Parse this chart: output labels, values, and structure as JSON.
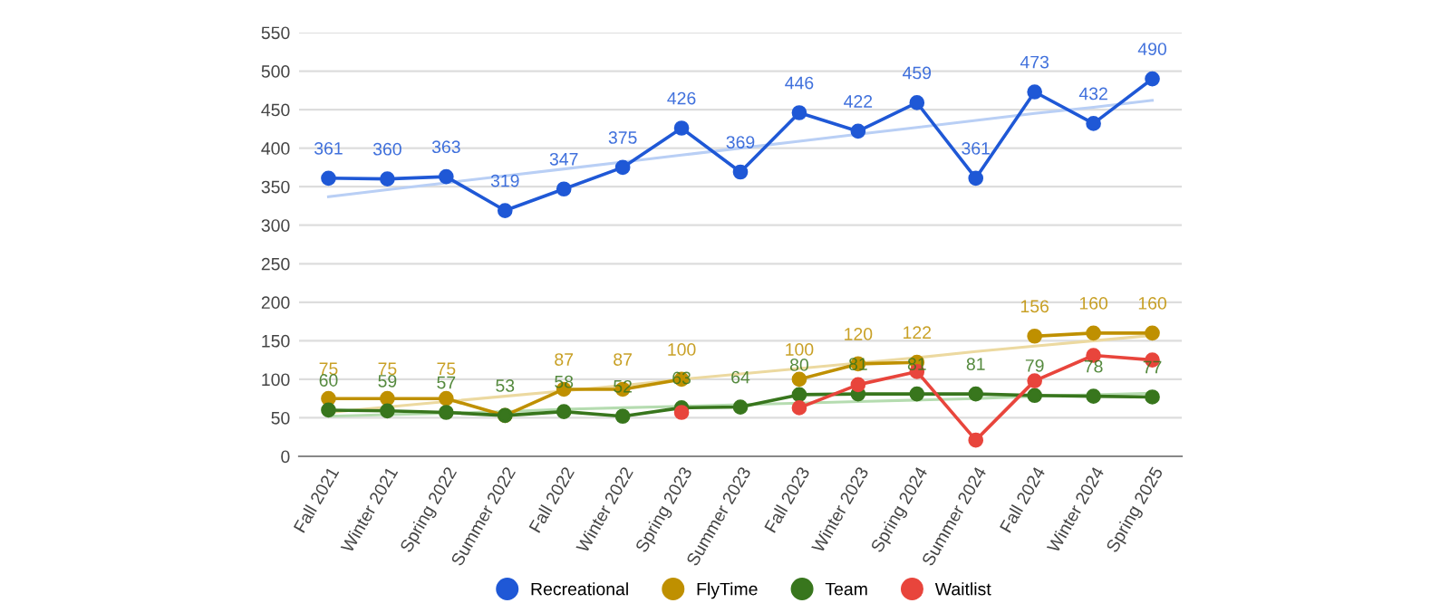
{
  "chart_data": {
    "type": "line",
    "categories": [
      "Fall 2021",
      "Winter 2021",
      "Spring 2022",
      "Summer 2022",
      "Fall 2022",
      "Winter 2022",
      "Spring 2023",
      "Summer 2023",
      "Fall 2023",
      "Winter 2023",
      "Spring 2024",
      "Summer 2024",
      "Fall 2024",
      "Winter 2024",
      "Spring 2025"
    ],
    "series": [
      {
        "name": "Recreational",
        "color": "#1f58d6",
        "values": [
          361,
          360,
          363,
          319,
          347,
          375,
          426,
          369,
          446,
          422,
          459,
          361,
          473,
          432,
          490
        ],
        "value_labels": [
          "361",
          "360",
          "363",
          "319",
          "347",
          "375",
          "426",
          "369",
          "446",
          "422",
          "459",
          "361",
          "473",
          "432",
          "490"
        ]
      },
      {
        "name": "FlyTime",
        "color": "#bf9000",
        "values": [
          75,
          75,
          75,
          53,
          87,
          87,
          100,
          null,
          100,
          120,
          122,
          null,
          156,
          160,
          160
        ],
        "value_labels": [
          "75",
          "75",
          "75",
          null,
          "87",
          "87",
          "100",
          null,
          "100",
          "120",
          "122",
          null,
          "156",
          "160",
          "160"
        ]
      },
      {
        "name": "Team",
        "color": "#38761d",
        "values": [
          60,
          59,
          57,
          53,
          58,
          52,
          63,
          64,
          80,
          81,
          81,
          81,
          79,
          78,
          77
        ],
        "value_labels": [
          "60",
          "59",
          "57",
          "53",
          "58",
          "52",
          "63",
          "64",
          "80",
          "81",
          "81",
          "81",
          "79",
          "78",
          "77"
        ]
      },
      {
        "name": "Waitlist",
        "color": "#e8453c",
        "values": [
          null,
          null,
          null,
          null,
          null,
          null,
          57,
          null,
          63,
          93,
          110,
          21,
          98,
          131,
          125
        ]
      },
      {
        "type": "line",
        "marker": "none",
        "color": "#b9cff5",
        "values": [
          337,
          346,
          355,
          364,
          373,
          382,
          391,
          400,
          409,
          418,
          427,
          436,
          445,
          453,
          462
        ]
      },
      {
        "type": "line",
        "marker": "none",
        "color": "#ecd9a0",
        "values": [
          57,
          64,
          71,
          78,
          85,
          92,
          100,
          107,
          114,
          121,
          128,
          136,
          143,
          150,
          157
        ]
      },
      {
        "type": "line",
        "marker": "none",
        "color": "#b5dcb0",
        "values": [
          52,
          54,
          56,
          58,
          61,
          63,
          65,
          67,
          69,
          71,
          73,
          75,
          78,
          80,
          82
        ]
      }
    ],
    "ylim": [
      0,
      550
    ],
    "yticks": [
      0,
      50,
      100,
      150,
      200,
      250,
      300,
      350,
      400,
      450,
      500,
      550
    ],
    "grid": "y",
    "legend": "bottom",
    "marker": "circle",
    "line_style": "solid"
  }
}
